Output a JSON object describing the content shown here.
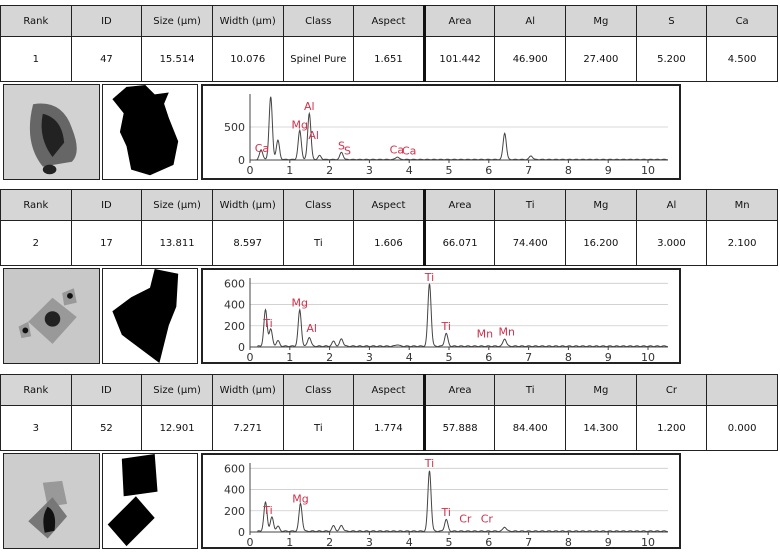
{
  "particles": [
    {
      "headers": [
        "Rank",
        "ID",
        "Size (µm)",
        "Width (µm)",
        "Class",
        "Aspect",
        "Area",
        "Al",
        "Mg",
        "S",
        "Ca"
      ],
      "values": [
        "1",
        "47",
        "15.514",
        "10.076",
        "Spinel Pure",
        "1.651",
        "101.442",
        "46.900",
        "27.400",
        "5.200",
        "4.500"
      ]
    },
    {
      "headers": [
        "Rank",
        "ID",
        "Size (µm)",
        "Width (µm)",
        "Class",
        "Aspect",
        "Area",
        "Ti",
        "Mg",
        "Al",
        "Mn"
      ],
      "values": [
        "2",
        "17",
        "13.811",
        "8.597",
        "Ti",
        "1.606",
        "66.071",
        "74.400",
        "16.200",
        "3.000",
        "2.100"
      ]
    },
    {
      "headers": [
        "Rank",
        "ID",
        "Size (µm)",
        "Width (µm)",
        "Class",
        "Aspect",
        "Area",
        "Ti",
        "Mg",
        "Cr",
        ""
      ],
      "values": [
        "3",
        "52",
        "12.901",
        "7.271",
        "Ti",
        "1.774",
        "57.888",
        "84.400",
        "14.300",
        "1.200",
        "0.000"
      ]
    }
  ],
  "colors": {
    "header_bg": "#d6d6d6",
    "label": "#d0324a",
    "line": "#444444"
  },
  "chart_data": [
    {
      "type": "line",
      "xlim": [
        0,
        10.5
      ],
      "ylim": [
        0,
        1000
      ],
      "xticks": [
        0,
        1,
        2,
        3,
        4,
        5,
        6,
        7,
        8,
        9,
        10
      ],
      "yticks": [
        0,
        500
      ],
      "grid": true,
      "peaks": [
        [
          0.28,
          150
        ],
        [
          0.52,
          950
        ],
        [
          0.7,
          290
        ],
        [
          1.25,
          440
        ],
        [
          1.49,
          700
        ],
        [
          1.75,
          60
        ],
        [
          2.3,
          110
        ],
        [
          3.7,
          40
        ],
        [
          6.4,
          400
        ],
        [
          7.06,
          55
        ]
      ],
      "labels": [
        {
          "text": "Ca",
          "x": 0.3,
          "y": 120
        },
        {
          "text": "Mg",
          "x": 1.25,
          "y": 480
        },
        {
          "text": "Al",
          "x": 1.49,
          "y": 760
        },
        {
          "text": "Al",
          "x": 1.6,
          "y": 320
        },
        {
          "text": "S",
          "x": 2.3,
          "y": 160
        },
        {
          "text": "S",
          "x": 2.45,
          "y": 80
        },
        {
          "text": "Ca",
          "x": 3.69,
          "y": 100
        },
        {
          "text": "Ca",
          "x": 4.0,
          "y": 80
        }
      ]
    },
    {
      "type": "line",
      "xlim": [
        0,
        10.5
      ],
      "ylim": [
        0,
        650
      ],
      "xticks": [
        0,
        1,
        2,
        3,
        4,
        5,
        6,
        7,
        8,
        9,
        10
      ],
      "yticks": [
        0,
        200,
        400,
        600
      ],
      "grid": true,
      "peaks": [
        [
          0.39,
          340
        ],
        [
          0.52,
          160
        ],
        [
          0.7,
          50
        ],
        [
          1.25,
          340
        ],
        [
          1.49,
          85
        ],
        [
          2.1,
          45
        ],
        [
          2.3,
          70
        ],
        [
          3.7,
          15
        ],
        [
          4.51,
          590
        ],
        [
          4.93,
          120
        ],
        [
          6.4,
          70
        ]
      ],
      "labels": [
        {
          "text": "Ti",
          "x": 0.45,
          "y": 190
        },
        {
          "text": "Mg",
          "x": 1.25,
          "y": 380
        },
        {
          "text": "Al",
          "x": 1.55,
          "y": 140
        },
        {
          "text": "Ti",
          "x": 4.51,
          "y": 620
        },
        {
          "text": "Ti",
          "x": 4.93,
          "y": 160
        },
        {
          "text": "Mn",
          "x": 5.9,
          "y": 90
        },
        {
          "text": "Mn",
          "x": 6.45,
          "y": 110
        }
      ]
    },
    {
      "type": "line",
      "xlim": [
        0,
        10.5
      ],
      "ylim": [
        0,
        650
      ],
      "xticks": [
        0,
        1,
        2,
        3,
        4,
        5,
        6,
        7,
        8,
        9,
        10
      ],
      "yticks": [
        0,
        200,
        400,
        600
      ],
      "grid": true,
      "peaks": [
        [
          0.39,
          270
        ],
        [
          0.55,
          130
        ],
        [
          0.7,
          45
        ],
        [
          1.27,
          260
        ],
        [
          2.1,
          50
        ],
        [
          2.3,
          55
        ],
        [
          4.51,
          570
        ],
        [
          4.93,
          110
        ],
        [
          6.4,
          40
        ]
      ],
      "labels": [
        {
          "text": "Ti",
          "x": 0.45,
          "y": 170
        },
        {
          "text": "Mg",
          "x": 1.27,
          "y": 280
        },
        {
          "text": "Ti",
          "x": 4.51,
          "y": 610
        },
        {
          "text": "Ti",
          "x": 4.93,
          "y": 150
        },
        {
          "text": "Cr",
          "x": 5.41,
          "y": 90
        },
        {
          "text": "Cr",
          "x": 5.95,
          "y": 90
        }
      ]
    }
  ]
}
